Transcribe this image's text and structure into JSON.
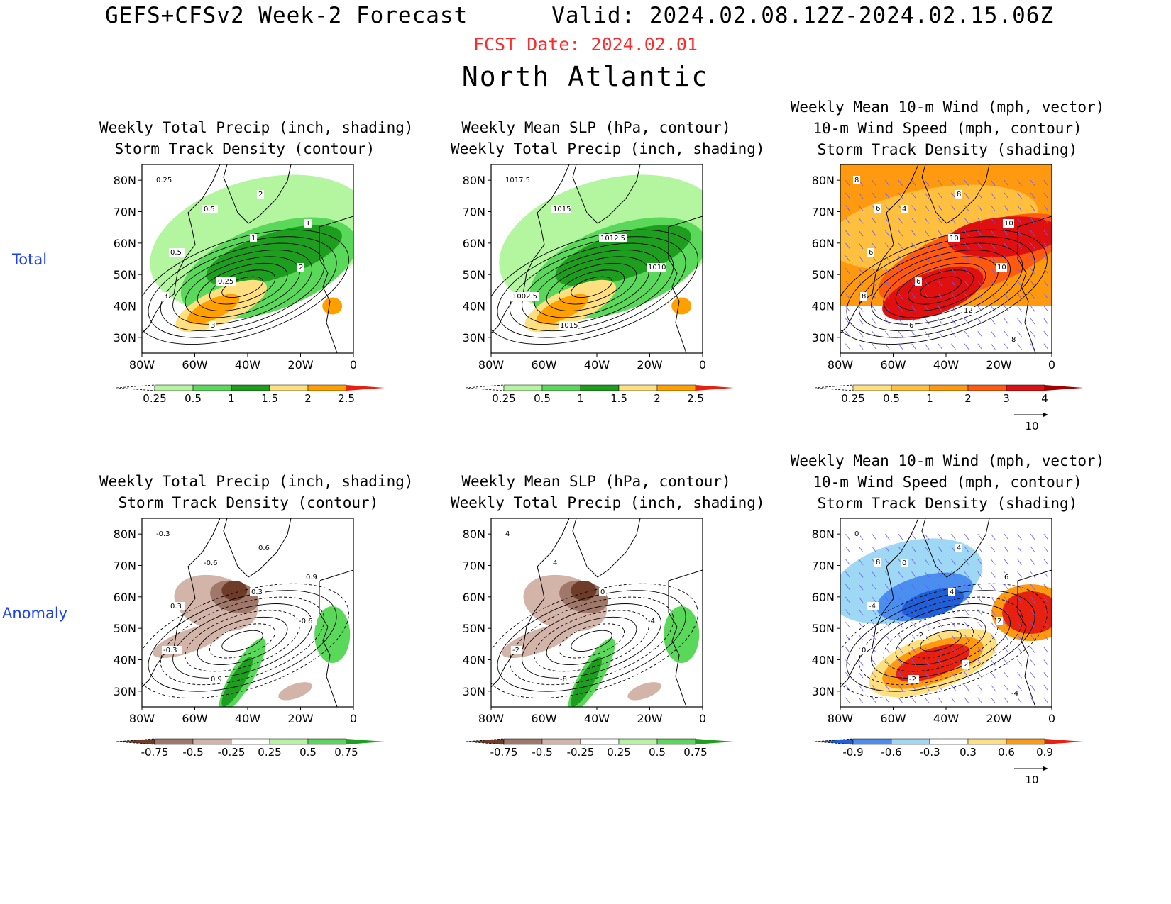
{
  "header": {
    "main": "GEFS+CFSv2 Week-2 Forecast      Valid: 2024.02.08.12Z-2024.02.15.06Z",
    "fcst_date": "FCST Date: 2024.02.01",
    "region": "North Atlantic"
  },
  "rows": [
    {
      "label": "Total"
    },
    {
      "label": "Anomaly"
    }
  ],
  "axes": {
    "lat_labels": [
      "80N",
      "70N",
      "60N",
      "50N",
      "40N",
      "30N"
    ],
    "lon_labels": [
      "80W",
      "60W",
      "40W",
      "20W",
      "0"
    ]
  },
  "panels": [
    {
      "title": "Weekly Total Precip (inch, shading)\nStorm Track Density (contour)",
      "colorbar": {
        "labels": [
          "0.25",
          "0.5",
          "1",
          "1.5",
          "2",
          "2.5"
        ],
        "colors": [
          "#ffffff",
          "#b4f5a0",
          "#5ad85a",
          "#1e9e1e",
          "#ffe080",
          "#ffa000",
          "#e82010"
        ]
      },
      "contour_labels": [
        "0.25",
        "0.5",
        "1",
        "2",
        "3",
        "3",
        "2",
        "1",
        "0.5",
        "0.25"
      ]
    },
    {
      "title": "Weekly Mean SLP (hPa, contour)\nWeekly Total Precip (inch, shading)",
      "colorbar": {
        "labels": [
          "0.25",
          "0.5",
          "1",
          "1.5",
          "2",
          "2.5"
        ],
        "colors": [
          "#ffffff",
          "#b4f5a0",
          "#5ad85a",
          "#1e9e1e",
          "#ffe080",
          "#ffa000",
          "#e82010"
        ]
      },
      "contour_labels": [
        "1017.5",
        "1015",
        "1012.5",
        "1010",
        "1002.5",
        "1015"
      ]
    },
    {
      "title": "Weekly Mean 10-m Wind (mph, vector)\n10-m Wind Speed (mph, contour)\nStorm Track Density (shading)",
      "colorbar": {
        "labels": [
          "0.25",
          "0.5",
          "1",
          "2",
          "3",
          "4"
        ],
        "colors": [
          "#ffffff",
          "#ffe080",
          "#ffc040",
          "#ff9a10",
          "#ff5a10",
          "#e01010",
          "#a00000"
        ]
      },
      "vector_ref": "10",
      "contour_labels": [
        "8",
        "4",
        "10",
        "10",
        "8",
        "6",
        "8",
        "10",
        "6",
        "6",
        "12",
        "8",
        "6"
      ]
    },
    {
      "title": "Weekly Total Precip (inch, shading)\nStorm Track Density (contour)",
      "colorbar": {
        "labels": [
          "-0.75",
          "-0.5",
          "-0.25",
          "0.25",
          "0.5",
          "0.75"
        ],
        "colors": [
          "#6e3c28",
          "#a0786a",
          "#d2b4a8",
          "#ffffff",
          "#b4f5a0",
          "#5ad85a",
          "#1e9e1e"
        ]
      },
      "contour_labels": [
        "-0.3",
        "-0.6",
        "0.3",
        "-0.6",
        "-0.3",
        "0.9",
        "0.6",
        "0.9",
        "0.3"
      ]
    },
    {
      "title": "Weekly Mean SLP (hPa, contour)\nWeekly Total Precip (inch, shading)",
      "colorbar": {
        "labels": [
          "-0.75",
          "-0.5",
          "-0.25",
          "0.25",
          "0.5",
          "0.75"
        ],
        "colors": [
          "#6e3c28",
          "#a0786a",
          "#d2b4a8",
          "#ffffff",
          "#b4f5a0",
          "#5ad85a",
          "#1e9e1e"
        ]
      },
      "contour_labels": [
        "4",
        "4",
        "0",
        "-4",
        "-2",
        "-8"
      ]
    },
    {
      "title": "Weekly Mean 10-m Wind (mph, vector)\n10-m Wind Speed (mph, contour)\nStorm Track Density (shading)",
      "colorbar": {
        "labels": [
          "-0.9",
          "-0.6",
          "-0.3",
          "0.3",
          "0.6",
          "0.9"
        ],
        "colors": [
          "#1f5fd8",
          "#4a8ff0",
          "#9fd8f5",
          "#ffffff",
          "#ffe080",
          "#ff9a10",
          "#e82010"
        ]
      },
      "vector_ref": "10",
      "contour_labels": [
        "0",
        "0",
        "4",
        "2",
        "0",
        "-2",
        "4",
        "6",
        "-4",
        "-2",
        "2",
        "-4",
        "8"
      ]
    }
  ]
}
